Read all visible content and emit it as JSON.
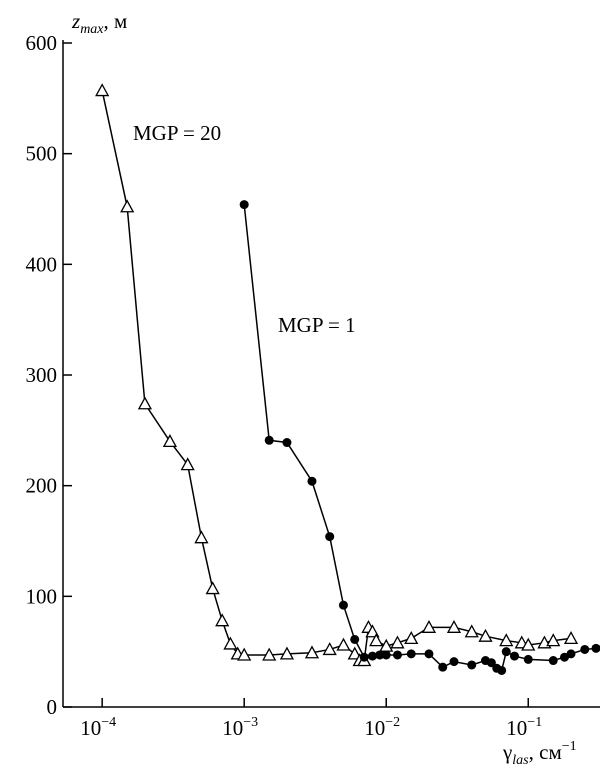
{
  "chart_data": {
    "type": "line",
    "ylabel": {
      "text": "z",
      "sub": "max",
      "rest": ", м"
    },
    "xlabel": {
      "text": "γ",
      "sub": "las",
      "rest": ", см",
      "sup": "−1"
    },
    "xscale": "log",
    "xlim": [
      5.3e-05,
      0.32
    ],
    "ylim": [
      0,
      600
    ],
    "xticks": [
      {
        "value": 0.0001,
        "label": "10",
        "power": "−4"
      },
      {
        "value": 0.001,
        "label": "10",
        "power": "−3"
      },
      {
        "value": 0.01,
        "label": "10",
        "power": "−2"
      },
      {
        "value": 0.1,
        "label": "10",
        "power": "−1"
      }
    ],
    "yticks": [
      0,
      100,
      200,
      300,
      400,
      500,
      600
    ],
    "series": [
      {
        "name": "MGP = 20",
        "marker": "triangle",
        "color": "#000000",
        "x": [
          0.0001,
          0.00015,
          0.0002,
          0.0003,
          0.0004,
          0.0005,
          0.0006,
          0.0007,
          0.0008,
          0.0009,
          0.001,
          0.0015,
          0.002,
          0.003,
          0.004,
          0.005,
          0.006,
          0.0065,
          0.007,
          0.0075,
          0.008,
          0.0085,
          0.01,
          0.012,
          0.015,
          0.02,
          0.03,
          0.04,
          0.05,
          0.07,
          0.09,
          0.1,
          0.13,
          0.15,
          0.2
        ],
        "values": [
          557,
          452,
          274,
          240,
          219,
          153,
          107,
          78,
          57,
          48,
          47,
          47,
          48,
          49,
          52,
          56,
          48,
          42,
          42,
          72,
          68,
          60,
          55,
          58,
          62,
          72,
          72,
          68,
          64,
          60,
          58,
          56,
          58,
          60,
          62
        ]
      },
      {
        "name": "MGP = 1",
        "marker": "dot",
        "color": "#000000",
        "x": [
          0.001,
          0.0015,
          0.002,
          0.003,
          0.004,
          0.005,
          0.006,
          0.007,
          0.008,
          0.009,
          0.01,
          0.012,
          0.015,
          0.02,
          0.025,
          0.03,
          0.04,
          0.05,
          0.055,
          0.06,
          0.065,
          0.07,
          0.08,
          0.1,
          0.15,
          0.18,
          0.2,
          0.25,
          0.3
        ],
        "values": [
          454,
          241,
          239,
          204,
          154,
          92,
          61,
          45,
          46,
          47,
          47,
          47,
          48,
          48,
          36,
          41,
          38,
          42,
          40,
          35,
          33,
          50,
          46,
          43,
          42,
          45,
          48,
          52,
          53
        ]
      }
    ]
  }
}
